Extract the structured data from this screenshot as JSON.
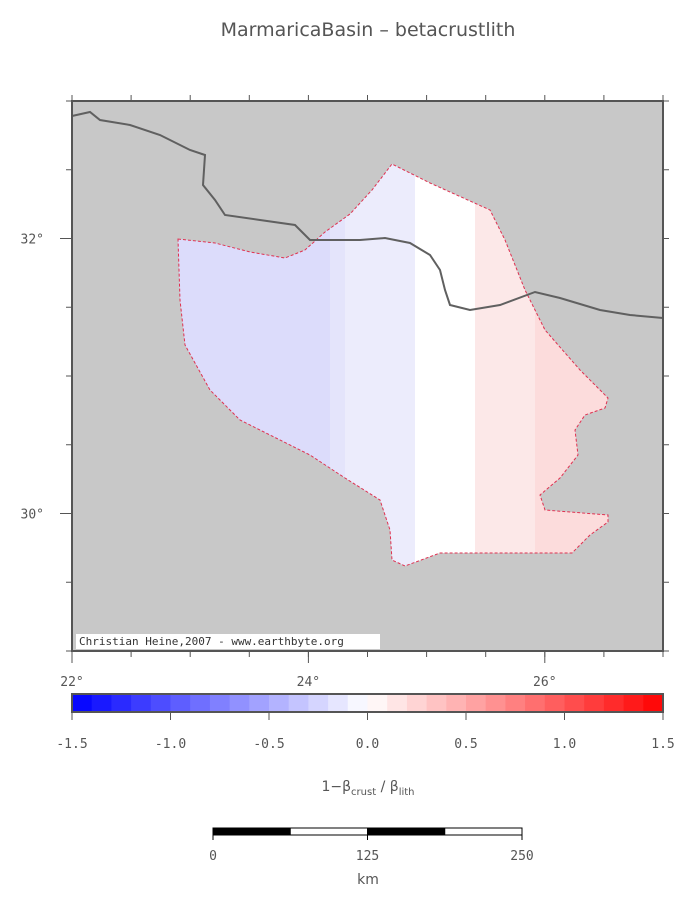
{
  "title": "MarmaricaBasin – betacrustlith",
  "map": {
    "lon_range": [
      22,
      27
    ],
    "lat_range": [
      29,
      33
    ],
    "lon_ticks": [
      {
        "value": 22,
        "label": "22°"
      },
      {
        "value": 24,
        "label": "24°"
      },
      {
        "value": 26,
        "label": "26°"
      }
    ],
    "lat_ticks": [
      {
        "value": 30,
        "label": "30°"
      },
      {
        "value": 32,
        "label": "32°"
      }
    ],
    "credit": "Christian Heine,2007 - www.earthbyte.org"
  },
  "colorbar": {
    "range": [
      -1.5,
      1.5
    ],
    "ticks": [
      {
        "value": -1.5,
        "label": "-1.5"
      },
      {
        "value": -1,
        "label": "-1.0"
      },
      -0.5,
      {
        "value": 0,
        "label": "0.0"
      },
      0.5,
      {
        "value": 1,
        "label": "1.0"
      },
      1.5
    ],
    "label": {
      "main": "1−β",
      "sub1": "crust",
      "mid": " / β",
      "sub2": "lith"
    }
  },
  "scalebar": {
    "ticks": [
      0,
      125,
      250
    ],
    "unit": "km"
  }
}
